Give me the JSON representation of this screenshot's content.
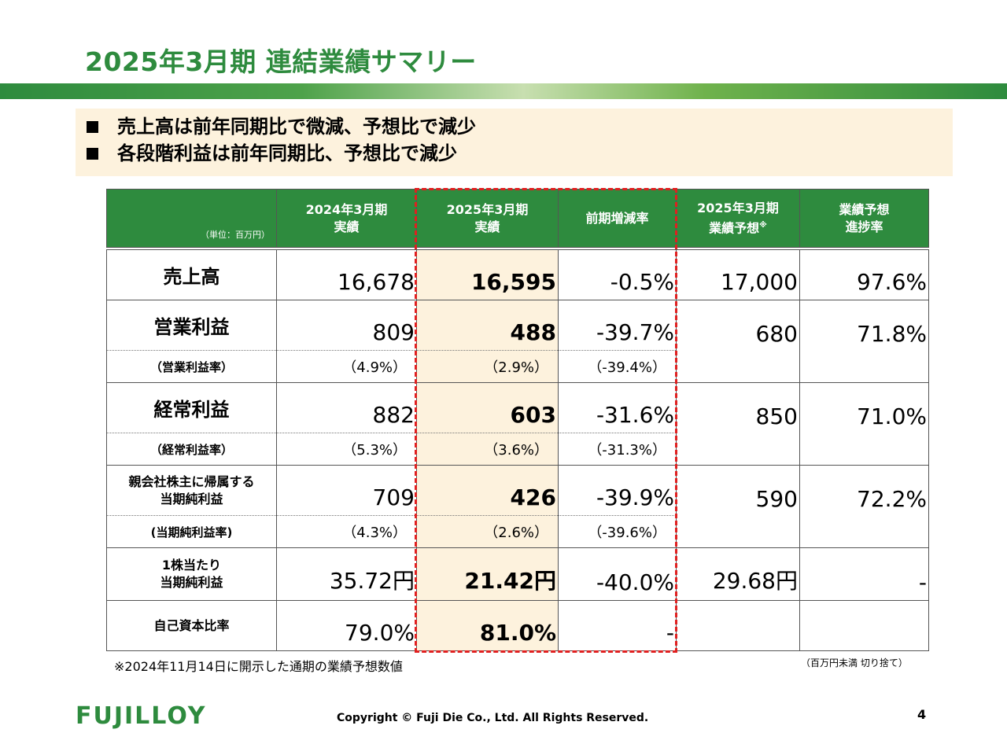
{
  "title": "2025年3月期 連結業績サマリー",
  "bullets": [
    "売上高は前年同期比で微減、予想比で減少",
    "各段階利益は前年同期比、予想比で減少"
  ],
  "table": {
    "unit_label": "（単位：百万円）",
    "col1_line1": "2024年3月期",
    "col1_line2": "実績",
    "col2_line1": "2025年3月期",
    "col2_line2": "実績",
    "col3": "前期増減率",
    "col4_line1": "2025年3月期",
    "col4_line2": "業績予想",
    "col4_mark": "※",
    "col5_line1": "業績予想",
    "col5_line2": "進捗率",
    "sales": {
      "label": "売上高",
      "prev": "16,678",
      "curr": "16,595",
      "chg": "-0.5%",
      "fcst": "17,000",
      "prog": "97.6%"
    },
    "op": {
      "label": "営業利益",
      "prev": "809",
      "curr": "488",
      "chg": "-39.7%",
      "fcst": "680",
      "prog": "71.8%",
      "rate_label": "（営業利益率）",
      "rate_prev": "（4.9%）",
      "rate_curr": "（2.9%）",
      "rate_chg": "（-39.4%）"
    },
    "ord": {
      "label": "経常利益",
      "prev": "882",
      "curr": "603",
      "chg": "-31.6%",
      "fcst": "850",
      "prog": "71.0%",
      "rate_label": "（経常利益率）",
      "rate_prev": "（5.3%）",
      "rate_curr": "（3.6%）",
      "rate_chg": "（-31.3%）"
    },
    "net": {
      "label_line1": "親会社株主に帰属する",
      "label_line2": "当期純利益",
      "prev": "709",
      "curr": "426",
      "chg": "-39.9%",
      "fcst": "590",
      "prog": "72.2%",
      "rate_label": "(当期純利益率)",
      "rate_prev": "（4.3%）",
      "rate_curr": "（2.6%）",
      "rate_chg": "（-39.6%）"
    },
    "eps": {
      "label_line1": "1株当たり",
      "label_line2": "当期純利益",
      "prev": "35.72円",
      "curr": "21.42円",
      "chg": "-40.0%",
      "fcst": "29.68円",
      "prog": "-"
    },
    "equity": {
      "label": "自己資本比率",
      "prev": "79.0%",
      "curr": "81.0%",
      "chg": "-",
      "fcst": "",
      "prog": ""
    }
  },
  "footnote": "※2024年11月14日に開示した通期の業績予想数値",
  "unit_note": "（百万円未満 切り捨て）",
  "logo_text": "FUJILLOY",
  "copyright": "Copyright © Fuji Die Co., Ltd. All Rights Reserved.",
  "page_number": "4",
  "colors": {
    "brand_green": "#2e8b3e",
    "highlight": "#fdf2dd",
    "dash_red": "#e02020"
  }
}
